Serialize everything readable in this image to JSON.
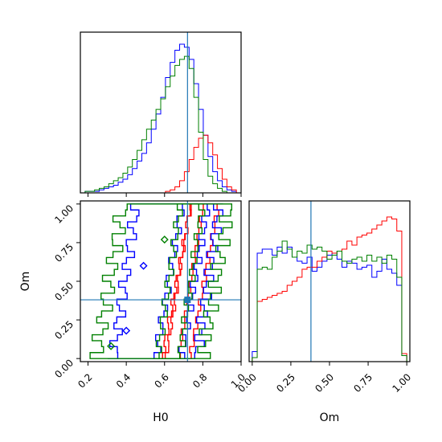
{
  "chart_data": {
    "type": "corner",
    "parameters": [
      "H0",
      "Om"
    ],
    "truth": {
      "H0": 0.72,
      "Om": 0.38
    },
    "truth_color": "#1f77b4",
    "xlabels": {
      "H0": "H0",
      "Om": "Om"
    },
    "ylabels": {
      "Om": "Om"
    },
    "ticks": {
      "H0": [
        "0.2",
        "0.4",
        "0.6",
        "0.8",
        "1.0"
      ],
      "Om": [
        "0.00",
        "0.25",
        "0.50",
        "0.75",
        "1.00"
      ]
    },
    "ranges": {
      "H0": [
        0.16,
        1.0
      ],
      "Om": [
        -0.02,
        1.02
      ]
    },
    "series": [
      {
        "color": "#0000ff",
        "hist_H0": [
          0,
          1,
          1,
          1,
          2,
          3,
          4,
          5,
          7,
          9,
          12,
          16,
          21,
          26,
          33,
          42,
          52,
          63,
          76,
          86,
          94,
          98,
          96,
          88,
          72,
          55,
          38,
          24,
          14,
          8,
          4,
          2,
          1,
          0
        ],
        "hist_Om": [
          5,
          54,
          56,
          56,
          53,
          57,
          54,
          57,
          52,
          50,
          49,
          52,
          45,
          47,
          50,
          53,
          54,
          51,
          47,
          50,
          49,
          46,
          47,
          48,
          42,
          45,
          51,
          46,
          44,
          38,
          3
        ]
      },
      {
        "color": "#ff0000",
        "hist_H0": [
          0,
          0,
          0,
          0,
          0,
          0,
          0,
          0,
          0,
          0,
          0,
          0,
          0,
          0,
          0,
          0,
          0,
          0,
          1,
          2,
          4,
          8,
          14,
          22,
          30,
          36,
          38,
          33,
          25,
          16,
          9,
          4,
          2,
          0
        ],
        "hist_Om": [
          2,
          30,
          31,
          32,
          33,
          34,
          35,
          38,
          40,
          42,
          46,
          47,
          47,
          50,
          52,
          55,
          54,
          55,
          56,
          60,
          58,
          62,
          63,
          64,
          66,
          68,
          70,
          72,
          71,
          65,
          4
        ]
      },
      {
        "color": "#008000",
        "hist_H0": [
          0,
          1,
          1,
          2,
          3,
          4,
          6,
          8,
          10,
          13,
          17,
          22,
          28,
          35,
          42,
          48,
          55,
          62,
          70,
          77,
          84,
          88,
          90,
          82,
          63,
          40,
          22,
          11,
          6,
          3,
          1,
          0,
          0,
          0
        ],
        "hist_Om": [
          2,
          46,
          47,
          46,
          52,
          55,
          60,
          56,
          52,
          55,
          54,
          58,
          56,
          57,
          55,
          51,
          53,
          55,
          50,
          49,
          51,
          52,
          50,
          53,
          50,
          52,
          49,
          53,
          51,
          42,
          3
        ]
      }
    ]
  }
}
